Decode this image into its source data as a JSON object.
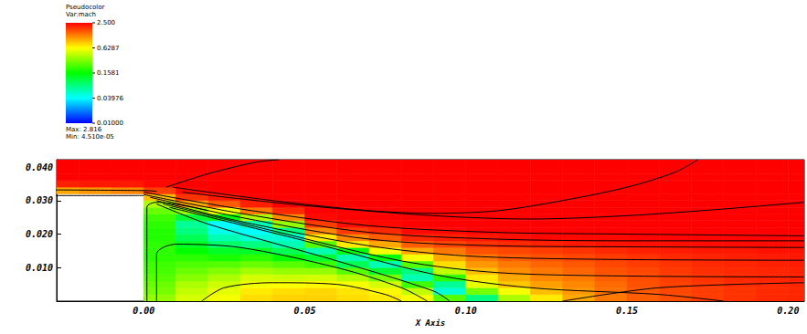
{
  "chart_data": {
    "type": "heatmap",
    "title": "Pseudocolor",
    "subtitle": "Var:mach",
    "annotations": [
      "Max: 2.816",
      "Min: 4.510e-05"
    ],
    "x_label": "X Axis",
    "xlim": [
      -0.027,
      0.205
    ],
    "xticks": [
      {
        "value": 0,
        "label": "0.00"
      },
      {
        "value": 0.05,
        "label": "0.05"
      },
      {
        "value": 0.1,
        "label": "0.10"
      },
      {
        "value": 0.15,
        "label": "0.15"
      },
      {
        "value": 0.2,
        "label": "0.20"
      }
    ],
    "ylim": [
      0,
      0.0422
    ],
    "yticks": [
      {
        "value": 0.01,
        "label": "0.010"
      },
      {
        "value": 0.02,
        "label": "0.020"
      },
      {
        "value": 0.03,
        "label": "0.030"
      },
      {
        "value": 0.04,
        "label": "0.040"
      }
    ],
    "grid": false,
    "colorbar": {
      "range": [
        0.01,
        2.5
      ],
      "log": true,
      "colors": [
        "#0000ff",
        "#00ffff",
        "#00ff00",
        "#ffff00",
        "#ff0000"
      ],
      "ticks": [
        {
          "value": 2.5,
          "label": "2.500"
        },
        {
          "value": 0.6287,
          "label": "0.6287"
        },
        {
          "value": 0.1581,
          "label": "0.1581"
        },
        {
          "value": 0.03976,
          "label": "0.03976"
        },
        {
          "value": 0.01,
          "label": "0.01000"
        }
      ]
    },
    "cells": {
      "x_edges": [
        -0.03,
        -0.02,
        -0.01,
        0,
        0.01,
        0.02,
        0.03,
        0.04,
        0.05,
        0.06,
        0.07,
        0.08,
        0.09,
        0.1,
        0.11,
        0.12,
        0.13,
        0.14,
        0.15,
        0.16,
        0.17,
        0.18,
        0.19,
        0.2,
        0.21
      ],
      "y_edges": [
        0,
        0.002,
        0.004,
        0.006,
        0.008,
        0.01,
        0.012,
        0.014,
        0.016,
        0.018,
        0.02,
        0.022,
        0.024,
        0.026,
        0.028,
        0.03,
        0.032,
        0.034,
        0.036,
        0.038,
        0.04,
        0.042,
        0.044
      ],
      "values": [
        [
          null,
          null,
          null,
          null,
          null,
          null,
          null,
          null,
          null,
          null,
          null,
          null,
          null,
          null,
          null,
          null,
          1.0,
          2.1,
          2.5,
          2.5,
          2.5,
          2.5
        ],
        [
          null,
          null,
          null,
          null,
          null,
          null,
          null,
          null,
          null,
          null,
          null,
          null,
          null,
          null,
          null,
          null,
          1.1,
          2.2,
          2.5,
          2.5,
          2.5,
          2.5
        ],
        [
          null,
          null,
          null,
          null,
          null,
          null,
          null,
          null,
          null,
          null,
          null,
          null,
          null,
          null,
          null,
          null,
          1.2,
          2.2,
          2.5,
          2.5,
          2.5,
          2.5
        ],
        [
          0.35,
          0.3,
          0.28,
          0.25,
          0.23,
          0.22,
          0.2,
          0.2,
          0.2,
          0.19,
          0.19,
          0.2,
          0.22,
          0.28,
          0.4,
          0.9,
          1.8,
          2.4,
          2.5,
          2.5,
          2.5,
          2.5
        ],
        [
          0.5,
          0.45,
          0.4,
          0.33,
          0.28,
          0.24,
          0.2,
          0.16,
          0.13,
          0.1,
          0.08,
          0.07,
          0.12,
          0.35,
          1.0,
          1.9,
          2.4,
          2.6,
          2.6,
          2.5,
          2.5,
          2.5
        ],
        [
          0.6,
          0.55,
          0.48,
          0.4,
          0.32,
          0.25,
          0.18,
          0.13,
          0.09,
          0.06,
          0.045,
          0.04,
          0.15,
          0.6,
          1.5,
          2.2,
          2.6,
          2.7,
          2.6,
          2.55,
          2.5,
          2.5
        ],
        [
          0.75,
          0.7,
          0.6,
          0.5,
          0.38,
          0.28,
          0.2,
          0.13,
          0.08,
          0.05,
          0.04,
          0.06,
          0.4,
          1.3,
          2.1,
          2.6,
          2.75,
          2.7,
          2.6,
          2.55,
          2.5,
          2.5
        ],
        [
          0.8,
          0.75,
          0.62,
          0.48,
          0.35,
          0.25,
          0.16,
          0.1,
          0.06,
          0.05,
          0.08,
          0.35,
          1.2,
          2.0,
          2.6,
          2.8,
          2.75,
          2.65,
          2.6,
          2.55,
          2.5,
          2.5
        ],
        [
          0.8,
          0.78,
          0.65,
          0.5,
          0.35,
          0.22,
          0.12,
          0.06,
          0.25,
          0.7,
          1.2,
          1.8,
          2.4,
          2.7,
          2.8,
          2.75,
          2.65,
          2.6,
          2.55,
          2.5,
          2.5,
          2.5
        ],
        [
          0.75,
          0.72,
          0.6,
          0.42,
          0.25,
          0.1,
          0.06,
          0.15,
          0.7,
          1.2,
          1.8,
          2.3,
          2.6,
          2.75,
          2.8,
          2.7,
          2.65,
          2.6,
          2.55,
          2.5,
          2.5,
          2.5
        ],
        [
          0.7,
          0.65,
          0.5,
          0.3,
          0.12,
          0.06,
          0.15,
          0.6,
          1.0,
          1.5,
          2.0,
          2.4,
          2.7,
          2.8,
          2.75,
          2.7,
          2.65,
          2.6,
          2.55,
          2.5,
          2.5,
          2.5
        ],
        [
          0.6,
          0.45,
          0.22,
          0.06,
          0.08,
          0.25,
          0.6,
          1.0,
          1.5,
          2.0,
          2.4,
          2.65,
          2.75,
          2.75,
          2.7,
          2.65,
          2.6,
          2.6,
          2.55,
          2.5,
          2.5,
          2.5
        ],
        [
          0.25,
          0.05,
          0.07,
          0.2,
          0.45,
          0.75,
          1.0,
          1.3,
          1.7,
          2.1,
          2.4,
          2.6,
          2.7,
          2.7,
          2.7,
          2.65,
          2.6,
          2.6,
          2.55,
          2.5,
          2.5,
          2.5
        ],
        [
          0.08,
          0.3,
          0.55,
          0.7,
          0.9,
          1.1,
          1.3,
          1.6,
          1.9,
          2.2,
          2.5,
          2.6,
          2.65,
          2.7,
          2.7,
          2.65,
          2.6,
          2.55,
          2.55,
          2.5,
          2.5,
          2.5
        ],
        [
          0.4,
          0.6,
          0.85,
          1.0,
          1.15,
          1.3,
          1.5,
          1.7,
          2.0,
          2.3,
          2.5,
          2.6,
          2.65,
          2.65,
          2.65,
          2.6,
          2.6,
          2.55,
          2.5,
          2.5,
          2.5,
          2.5
        ],
        [
          0.7,
          0.9,
          1.05,
          1.2,
          1.3,
          1.45,
          1.6,
          1.8,
          2.1,
          2.4,
          2.5,
          2.6,
          2.6,
          2.6,
          2.6,
          2.6,
          2.55,
          2.55,
          2.5,
          2.5,
          2.5,
          2.5
        ],
        [
          1.0,
          1.1,
          1.2,
          1.3,
          1.45,
          1.55,
          1.7,
          1.9,
          2.2,
          2.4,
          2.5,
          2.55,
          2.6,
          2.6,
          2.6,
          2.55,
          2.55,
          2.5,
          2.5,
          2.5,
          2.5,
          2.5
        ],
        [
          1.3,
          1.35,
          1.4,
          1.5,
          1.6,
          1.7,
          1.8,
          2.0,
          2.25,
          2.4,
          2.5,
          2.55,
          2.55,
          2.55,
          2.55,
          2.55,
          2.5,
          2.5,
          2.5,
          2.5,
          2.5,
          2.5
        ],
        [
          1.5,
          1.55,
          1.6,
          1.65,
          1.7,
          1.8,
          1.9,
          2.1,
          2.3,
          2.45,
          2.5,
          2.55,
          2.55,
          2.55,
          2.5,
          2.5,
          2.5,
          2.5,
          2.5,
          2.5,
          2.5,
          2.5
        ],
        [
          1.65,
          1.7,
          1.75,
          1.8,
          1.85,
          1.9,
          2.0,
          2.15,
          2.3,
          2.45,
          2.5,
          2.5,
          2.5,
          2.5,
          2.5,
          2.5,
          2.5,
          2.5,
          2.5,
          2.5,
          2.5,
          2.5
        ],
        [
          1.8,
          1.8,
          1.85,
          1.9,
          1.95,
          2.0,
          2.05,
          2.2,
          2.35,
          2.45,
          2.5,
          2.5,
          2.5,
          2.5,
          2.5,
          2.5,
          2.5,
          2.5,
          2.5,
          2.5,
          2.5,
          2.5
        ],
        [
          1.9,
          1.9,
          1.95,
          2.0,
          2.0,
          2.05,
          2.1,
          2.2,
          2.35,
          2.45,
          2.5,
          2.5,
          2.5,
          2.5,
          2.5,
          2.5,
          2.5,
          2.5,
          2.5,
          2.5,
          2.5,
          2.5
        ],
        [
          2.0,
          2.0,
          2.0,
          2.05,
          2.05,
          2.1,
          2.15,
          2.25,
          2.35,
          2.45,
          2.5,
          2.5,
          2.5,
          2.5,
          2.5,
          2.5,
          2.5,
          2.5,
          2.5,
          2.5,
          2.5,
          2.5
        ],
        [
          2.05,
          2.05,
          2.05,
          2.1,
          2.1,
          2.15,
          2.2,
          2.25,
          2.35,
          2.45,
          2.5,
          2.5,
          2.5,
          2.5,
          2.5,
          2.5,
          2.5,
          2.5,
          2.5,
          2.5,
          2.5,
          2.5
        ]
      ]
    },
    "contours": [
      [
        [
          -0.03,
          0.0315
        ],
        [
          0.0,
          0.0315
        ]
      ],
      [
        [
          -0.03,
          0.0332
        ],
        [
          0.0,
          0.033
        ],
        [
          0.004,
          0.0328
        ]
      ],
      [
        [
          0.001,
          0.0
        ],
        [
          0.001,
          0.028
        ],
        [
          0.004,
          0.0295
        ],
        [
          0.02,
          0.027
        ]
      ],
      [
        [
          0.007,
          0.034
        ],
        [
          0.02,
          0.038
        ],
        [
          0.035,
          0.0415
        ],
        [
          0.042,
          0.0422
        ]
      ],
      [
        [
          0.009,
          0.034
        ],
        [
          0.04,
          0.03
        ],
        [
          0.07,
          0.027
        ],
        [
          0.09,
          0.0262
        ],
        [
          0.11,
          0.027
        ],
        [
          0.13,
          0.03
        ],
        [
          0.15,
          0.034
        ],
        [
          0.165,
          0.0385
        ],
        [
          0.172,
          0.0422
        ]
      ],
      [
        [
          0.012,
          0.0325
        ],
        [
          0.05,
          0.0285
        ],
        [
          0.09,
          0.0255
        ],
        [
          0.12,
          0.0245
        ],
        [
          0.15,
          0.0255
        ],
        [
          0.18,
          0.0275
        ],
        [
          0.205,
          0.0295
        ]
      ],
      [
        [
          0.0,
          0.0325
        ],
        [
          0.03,
          0.0275
        ],
        [
          0.07,
          0.0225
        ],
        [
          0.11,
          0.0205
        ],
        [
          0.15,
          0.02
        ],
        [
          0.205,
          0.0195
        ]
      ],
      [
        [
          0.0,
          0.0318
        ],
        [
          0.03,
          0.0262
        ],
        [
          0.07,
          0.0205
        ],
        [
          0.11,
          0.0185
        ],
        [
          0.15,
          0.018
        ],
        [
          0.205,
          0.018
        ]
      ],
      [
        [
          0.002,
          0.031
        ],
        [
          0.03,
          0.025
        ],
        [
          0.07,
          0.0185
        ],
        [
          0.11,
          0.0165
        ],
        [
          0.15,
          0.0162
        ],
        [
          0.205,
          0.016
        ]
      ],
      [
        [
          0.004,
          0.03
        ],
        [
          0.03,
          0.0238
        ],
        [
          0.07,
          0.0165
        ],
        [
          0.1,
          0.0135
        ],
        [
          0.14,
          0.0125
        ],
        [
          0.205,
          0.0122
        ]
      ],
      [
        [
          0.006,
          0.029
        ],
        [
          0.04,
          0.021
        ],
        [
          0.08,
          0.012
        ],
        [
          0.11,
          0.0085
        ],
        [
          0.15,
          0.0075
        ],
        [
          0.205,
          0.0072
        ]
      ],
      [
        [
          0.008,
          0.028
        ],
        [
          0.05,
          0.018
        ],
        [
          0.09,
          0.008
        ],
        [
          0.12,
          0.004
        ],
        [
          0.16,
          0.002
        ],
        [
          0.18,
          0.0
        ]
      ],
      [
        [
          0.004,
          0.029
        ],
        [
          0.02,
          0.023
        ],
        [
          0.06,
          0.012
        ],
        [
          0.09,
          0.003
        ],
        [
          0.095,
          0.0
        ]
      ],
      [
        [
          0.004,
          0.0
        ],
        [
          0.004,
          0.014
        ],
        [
          0.01,
          0.017
        ],
        [
          0.03,
          0.016
        ],
        [
          0.06,
          0.01
        ],
        [
          0.08,
          0.004
        ],
        [
          0.088,
          0.0
        ]
      ],
      [
        [
          0.018,
          0.0
        ],
        [
          0.025,
          0.004
        ],
        [
          0.04,
          0.0055
        ],
        [
          0.06,
          0.005
        ],
        [
          0.075,
          0.002
        ],
        [
          0.08,
          0.0
        ]
      ],
      [
        [
          0.13,
          0.0
        ],
        [
          0.16,
          0.004
        ],
        [
          0.205,
          0.0055
        ]
      ]
    ]
  }
}
